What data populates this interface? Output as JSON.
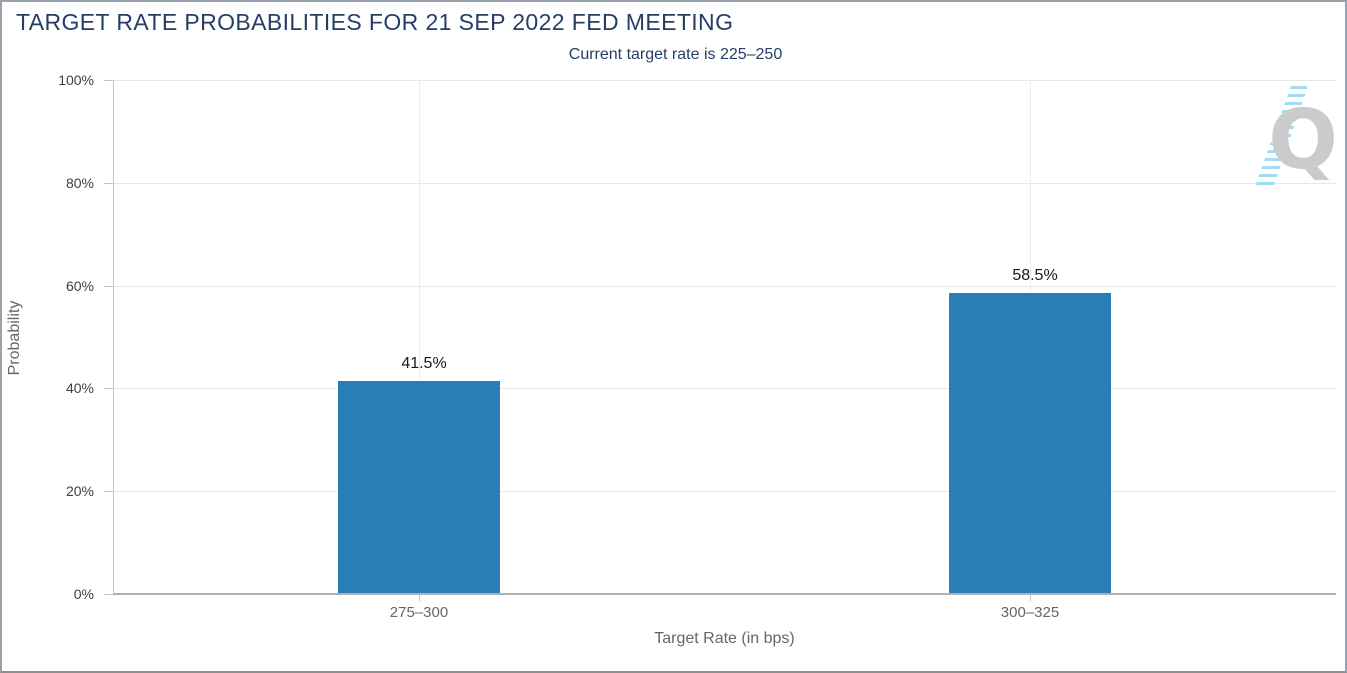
{
  "header": {
    "title": "TARGET RATE PROBABILITIES FOR 21 SEP 2022 FED MEETING",
    "subtitle": "Current target rate is 225–250"
  },
  "watermark": {
    "letter": "Q"
  },
  "chart_data": {
    "type": "bar",
    "title": "TARGET RATE PROBABILITIES FOR 21 SEP 2022 FED MEETING",
    "subtitle": "Current target rate is 225–250",
    "categories": [
      "275–300",
      "300–325"
    ],
    "values": [
      41.5,
      58.5
    ],
    "value_labels": [
      "41.5%",
      "58.5%"
    ],
    "xlabel": "Target Rate (in bps)",
    "ylabel": "Probability",
    "ylim": [
      0,
      100
    ],
    "ytick_labels": [
      "0%",
      "20%",
      "40%",
      "60%",
      "80%",
      "100%"
    ],
    "legend": "none",
    "grid": "horizontal 20% steps + vertical category lines",
    "bar_color": "#297EB8",
    "title_color": "#263e66",
    "label_color": "#1a1a1a"
  }
}
